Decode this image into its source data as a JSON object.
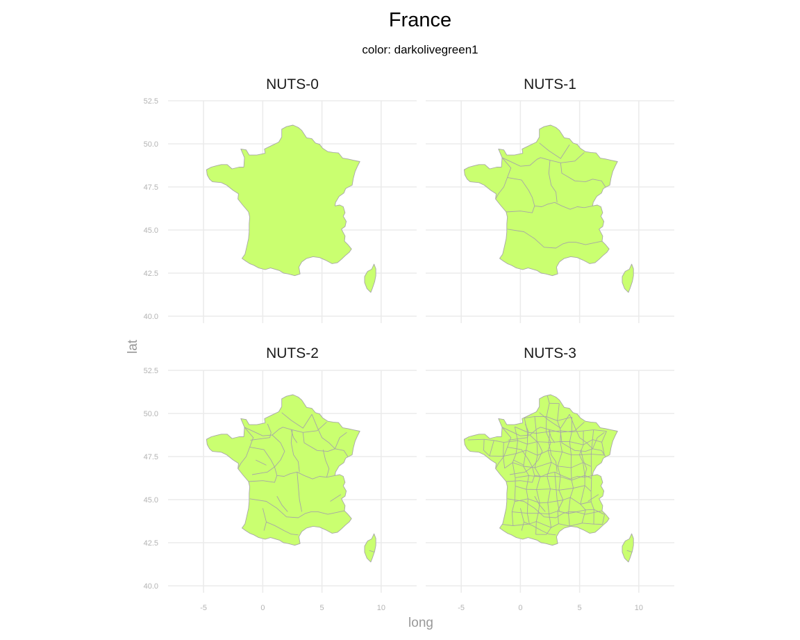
{
  "title": "France",
  "subtitle": "color: darkolivegreen1",
  "axes": {
    "x_title": "long",
    "y_title": "lat",
    "x_ticks": [
      "-5",
      "0",
      "5",
      "10"
    ],
    "y_ticks": [
      "40.0",
      "42.5",
      "45.0",
      "47.5",
      "50.0",
      "52.5"
    ]
  },
  "fill_color": "#caff70",
  "border_color": "#a6a6a6",
  "chart_data": {
    "type": "choropleth",
    "title": "France",
    "subtitle": "color: darkolivegreen1",
    "xlabel": "long",
    "ylabel": "lat",
    "xlim": [
      -8,
      13
    ],
    "ylim": [
      40,
      52.5
    ],
    "x_ticks": [
      -5,
      0,
      5,
      10
    ],
    "y_ticks": [
      40.0,
      42.5,
      45.0,
      47.5,
      50.0,
      52.5
    ],
    "grid": true,
    "facets": [
      {
        "label": "NUTS-0",
        "level": 0
      },
      {
        "label": "NUTS-1",
        "level": 1
      },
      {
        "label": "NUTS-2",
        "level": 2
      },
      {
        "label": "NUTS-3",
        "level": 3
      }
    ]
  }
}
